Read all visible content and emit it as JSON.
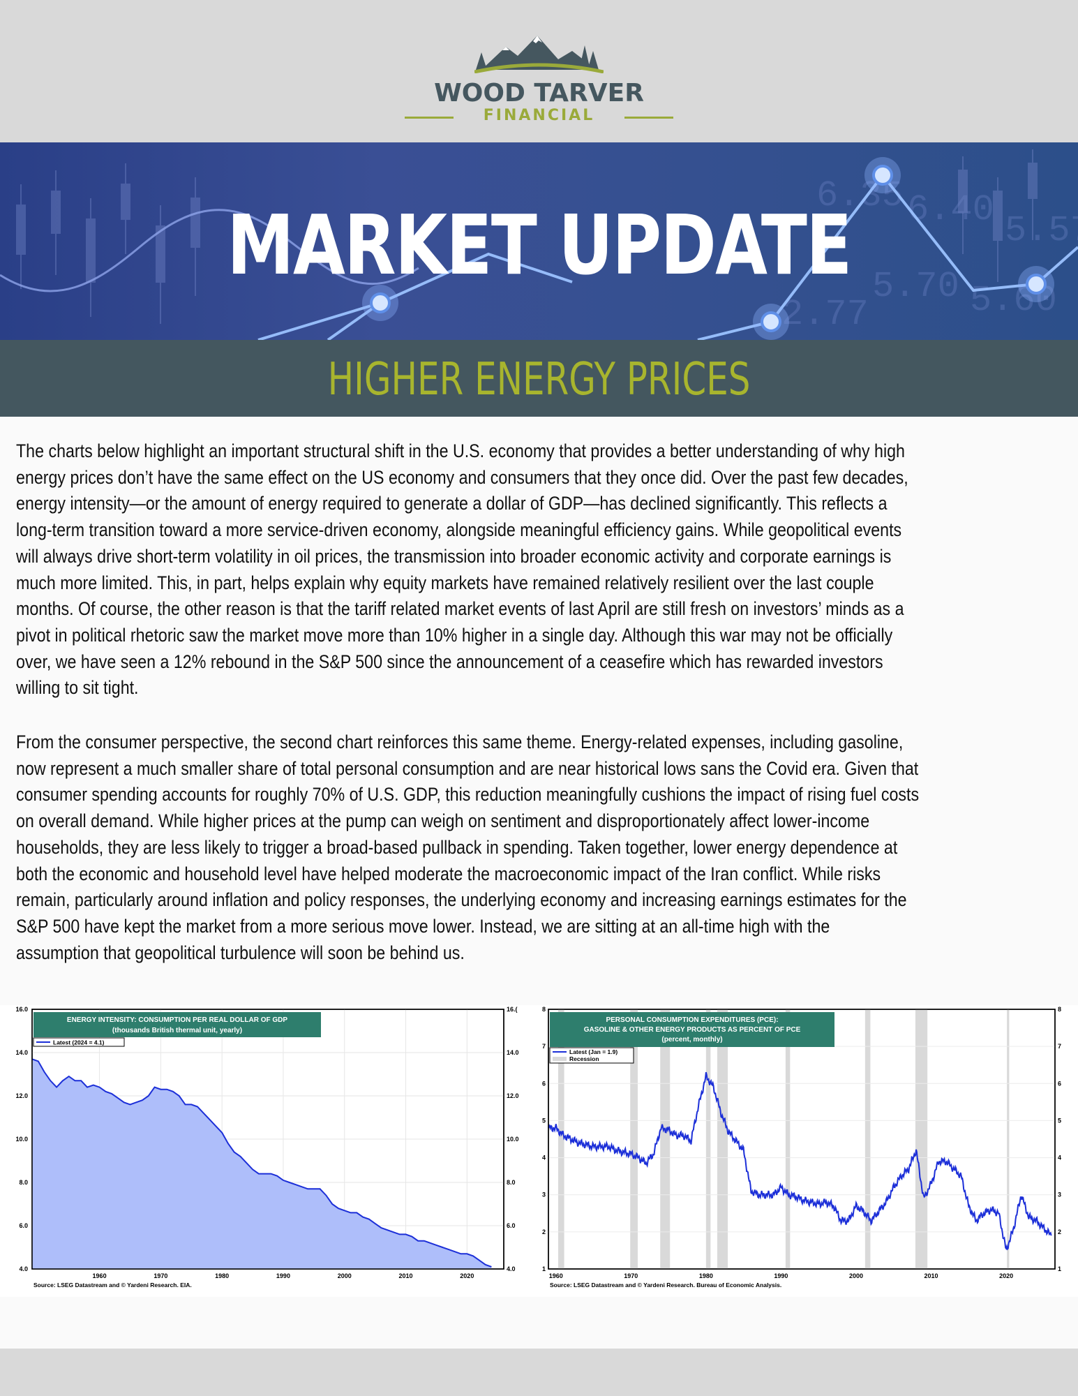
{
  "logo": {
    "name": "WOOD TARVER",
    "sub": "FINANCIAL"
  },
  "banner": {
    "title": "MARKET UPDATE",
    "subtitle": "HIGHER ENERGY PRICES",
    "bg_numbers": [
      "6.35",
      "6.40",
      "5.57",
      "5.70",
      "5.60",
      "2.77"
    ]
  },
  "body": {
    "paragraph1": [
      "The charts below highlight an important structural shift in the U.S. economy that provides a better understanding of why high",
      "energy prices don’t have the same effect on the US economy and consumers that they once did. Over the past few decades,",
      "energy intensity—or the amount of energy required to generate a dollar of GDP—has declined significantly. This reflects a",
      "long-term transition toward a more service-driven economy, alongside meaningful efficiency gains. While geopolitical events",
      "will always drive short-term volatility in oil prices, the transmission into broader economic activity and corporate earnings is",
      "much more limited. This, in part, helps explain why equity markets have remained relatively resilient over the last couple",
      "months. Of course, the other reason is that the tariff related market events of last April are still fresh on investors’ minds as a",
      "pivot in political rhetoric saw the market move more than 10% higher in a single day. Although this war may not be officially",
      "over, we have seen a 12% rebound in the S&P 500 since the announcement of a ceasefire which has rewarded investors",
      "willing to sit tight."
    ],
    "paragraph2": [
      "From the consumer perspective, the second chart reinforces this same theme. Energy-related expenses, including gasoline,",
      "now represent a much smaller share of total personal consumption and are near historical lows sans the Covid era. Given that",
      "consumer spending accounts for roughly 70% of U.S. GDP, this reduction meaningfully cushions the impact of rising fuel costs",
      "on overall demand. While higher prices at the pump can weigh on sentiment and disproportionately affect lower-income",
      "households, they are less likely to trigger a broad-based pullback in spending. Taken together, lower energy dependence at",
      "both the economic and household level have helped moderate the macroeconomic impact of the Iran conflict. While risks",
      "remain, particularly around inflation and policy responses, the underlying economy and increasing earnings estimates for the",
      "S&P 500 have kept the market from a more serious move lower. Instead, we are sitting at an all-time high with the",
      "assumption that geopolitical turbulence will soon be behind us."
    ]
  },
  "chart_data": [
    {
      "type": "area",
      "title": "ENERGY INTENSITY: CONSUMPTION PER REAL DOLLAR OF GDP",
      "subtitle": "(thousands British thermal unit, yearly)",
      "legend": "Latest (2024 = 4.1)",
      "source": "Source: LSEG Datastream and © Yardeni Research. EIA.",
      "ylim": [
        4,
        16
      ],
      "xlim": [
        1949,
        2026
      ],
      "y_ticks": [
        "4.0",
        "6.0",
        "8.0",
        "10.0",
        "12.0",
        "14.0",
        "16.0"
      ],
      "y_ticks_right": [
        "4.0",
        "6.0",
        "8.0",
        "10.0",
        "12.0",
        "14.0",
        "16.("
      ],
      "x_ticks": [
        "1960",
        "1970",
        "1980",
        "1990",
        "2000",
        "2010",
        "2020"
      ],
      "x_tick_values": [
        1960,
        1970,
        1980,
        1990,
        2000,
        2010,
        2020
      ],
      "color": "#1c2fd8",
      "fill": "#aebefa",
      "x": [
        1949,
        1950,
        1951,
        1952,
        1953,
        1954,
        1955,
        1956,
        1957,
        1958,
        1959,
        1960,
        1961,
        1962,
        1963,
        1964,
        1965,
        1966,
        1967,
        1968,
        1969,
        1970,
        1971,
        1972,
        1973,
        1974,
        1975,
        1976,
        1977,
        1978,
        1979,
        1980,
        1981,
        1982,
        1983,
        1984,
        1985,
        1986,
        1987,
        1988,
        1989,
        1990,
        1991,
        1992,
        1993,
        1994,
        1995,
        1996,
        1997,
        1998,
        1999,
        2000,
        2001,
        2002,
        2003,
        2004,
        2005,
        2006,
        2007,
        2008,
        2009,
        2010,
        2011,
        2012,
        2013,
        2014,
        2015,
        2016,
        2017,
        2018,
        2019,
        2020,
        2021,
        2022,
        2023,
        2024
      ],
      "y": [
        13.7,
        13.6,
        13.1,
        12.7,
        12.4,
        12.7,
        12.9,
        12.7,
        12.7,
        12.4,
        12.5,
        12.4,
        12.2,
        12.1,
        11.9,
        11.7,
        11.6,
        11.7,
        11.8,
        12.0,
        12.4,
        12.3,
        12.3,
        12.2,
        12.0,
        11.6,
        11.6,
        11.5,
        11.2,
        10.9,
        10.6,
        10.3,
        9.8,
        9.4,
        9.2,
        8.9,
        8.6,
        8.4,
        8.4,
        8.4,
        8.3,
        8.1,
        8.0,
        7.9,
        7.8,
        7.7,
        7.7,
        7.7,
        7.4,
        7.0,
        6.8,
        6.7,
        6.6,
        6.6,
        6.4,
        6.3,
        6.1,
        5.9,
        5.8,
        5.7,
        5.6,
        5.6,
        5.5,
        5.3,
        5.3,
        5.2,
        5.1,
        5.0,
        4.9,
        4.8,
        4.7,
        4.7,
        4.6,
        4.4,
        4.2,
        4.1
      ]
    },
    {
      "type": "line",
      "title": "PERSONAL CONSUMPTION EXPENDITURES (PCE):",
      "subtitle": "GASOLINE & OTHER ENERGY PRODUCTS AS PERCENT OF PCE",
      "subtitle2": "(percent, monthly)",
      "legend": [
        "Latest (Jan = 1.9)",
        "Recession"
      ],
      "source": "Source: LSEG Datastream and © Yardeni Research. Bureau of Economic Analysis.",
      "ylim": [
        1,
        8
      ],
      "xlim": [
        1959,
        2026.5
      ],
      "y_ticks": [
        "1",
        "2",
        "3",
        "4",
        "5",
        "6",
        "7",
        "8"
      ],
      "x_ticks": [
        "1960",
        "1970",
        "1980",
        "1990",
        "2000",
        "2010",
        "2020"
      ],
      "x_tick_values": [
        1960,
        1970,
        1980,
        1990,
        2000,
        2010,
        2020
      ],
      "color": "#1c2fd8",
      "recessions": [
        [
          1960.3,
          1961.1
        ],
        [
          1969.9,
          1970.9
        ],
        [
          1973.9,
          1975.2
        ],
        [
          1980.0,
          1980.6
        ],
        [
          1981.5,
          1982.9
        ],
        [
          1990.6,
          1991.2
        ],
        [
          2001.2,
          2001.9
        ],
        [
          2007.9,
          2009.5
        ],
        [
          2020.1,
          2020.4
        ]
      ],
      "x": [
        1959,
        1960,
        1961,
        1962,
        1963,
        1964,
        1965,
        1966,
        1967,
        1968,
        1969,
        1970,
        1971,
        1972,
        1973,
        1974,
        1975,
        1976,
        1977,
        1978,
        1979,
        1980,
        1981,
        1982,
        1983,
        1984,
        1985,
        1986,
        1987,
        1988,
        1989,
        1990,
        1991,
        1992,
        1993,
        1994,
        1995,
        1996,
        1997,
        1998,
        1999,
        2000,
        2001,
        2002,
        2003,
        2004,
        2005,
        2006,
        2007,
        2008,
        2009,
        2010,
        2011,
        2012,
        2013,
        2014,
        2015,
        2016,
        2017,
        2018,
        2019,
        2020,
        2021,
        2022,
        2023,
        2024,
        2025,
        2026
      ],
      "y": [
        4.8,
        4.8,
        4.6,
        4.5,
        4.4,
        4.35,
        4.3,
        4.3,
        4.3,
        4.2,
        4.15,
        4.1,
        4.0,
        3.85,
        4.1,
        4.8,
        4.75,
        4.6,
        4.6,
        4.45,
        5.4,
        6.2,
        5.9,
        5.2,
        4.7,
        4.45,
        4.2,
        3.1,
        3.0,
        3.0,
        3.0,
        3.2,
        3.0,
        2.95,
        2.85,
        2.8,
        2.75,
        2.8,
        2.7,
        2.3,
        2.3,
        2.7,
        2.55,
        2.3,
        2.55,
        2.8,
        3.2,
        3.5,
        3.7,
        4.2,
        2.9,
        3.3,
        3.9,
        3.9,
        3.7,
        3.5,
        2.7,
        2.3,
        2.5,
        2.6,
        2.5,
        1.5,
        2.1,
        3.0,
        2.4,
        2.3,
        2.1,
        1.9
      ]
    }
  ],
  "colors": {
    "olive": "#a8b52e",
    "slate": "#44575f",
    "chart_header": "#2e7e6d"
  }
}
